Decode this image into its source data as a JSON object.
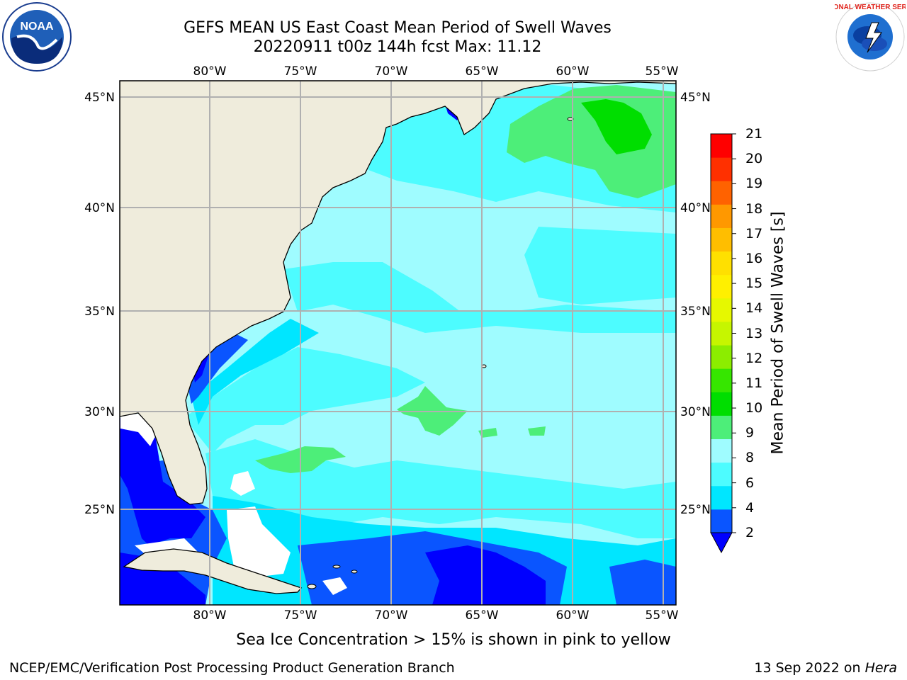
{
  "header": {
    "title_line1": "GEFS MEAN US East Coast Mean Period of Swell Waves",
    "title_line2": "20220911 t00z 144h fcst   Max: 11.12"
  },
  "logos": {
    "left": "NOAA",
    "right": "NATIONAL WEATHER SERVICE"
  },
  "map": {
    "lon_labels": [
      "80°W",
      "75°W",
      "70°W",
      "65°W",
      "60°W",
      "55°W"
    ],
    "lat_labels": [
      "45°N",
      "40°N",
      "35°N",
      "30°N",
      "25°N"
    ],
    "land_color": "#efecdc",
    "grid_color": "#b0b0b0"
  },
  "colorbar": {
    "label": "Mean Period of Swell Waves [s]",
    "ticks": [
      "2",
      "4",
      "6",
      "8",
      "9",
      "10",
      "11",
      "12",
      "13",
      "14",
      "15",
      "16",
      "17",
      "18",
      "19",
      "20",
      "21"
    ],
    "colors": [
      "#0a55ff",
      "#00e6ff",
      "#4dfcff",
      "#9ffcff",
      "#4dee79",
      "#00de00",
      "#36e600",
      "#8ced00",
      "#c6f600",
      "#e6f800",
      "#fff000",
      "#ffe000",
      "#ffbe00",
      "#ff9800",
      "#ff6200",
      "#ff3000",
      "#ff0000"
    ],
    "under_color": "#0000ff"
  },
  "footer": {
    "note": "Sea Ice Concentration > 15% is shown in pink to yellow",
    "branch": "NCEP/EMC/Verification Post Processing Product Generation Branch",
    "date_prefix": "13 Sep 2022 on ",
    "host": "Hera"
  }
}
